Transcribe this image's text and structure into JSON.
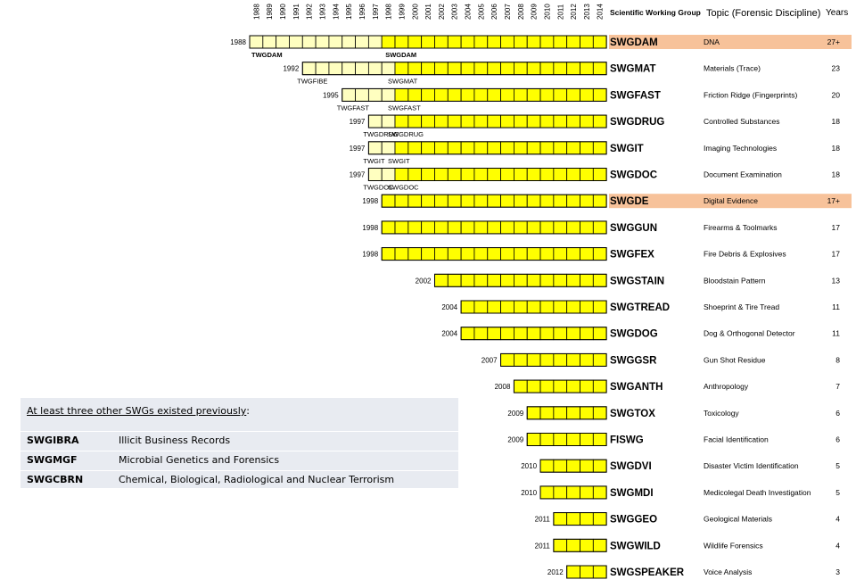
{
  "header": {
    "group_label": "Scientific Working Group",
    "topic_label": "Topic (Forensic Discipline)",
    "years_label": "Years"
  },
  "note": {
    "title": "At least three other SWGs existed previously",
    "title_suffix": ":",
    "items": [
      {
        "code": "SWGIBRA",
        "desc": "Illicit Business Records"
      },
      {
        "code": "SWGMGF",
        "desc": "Microbial Genetics and Forensics"
      },
      {
        "code": "SWGCBRN",
        "desc": "Chemical, Biological, Radiological and Nuclear Terrorism"
      }
    ]
  },
  "chart_data": {
    "type": "bar",
    "title": "",
    "x": [
      "1988",
      "1989",
      "1990",
      "1991",
      "1992",
      "1993",
      "1994",
      "1995",
      "1996",
      "1997",
      "1998",
      "1999",
      "2000",
      "2001",
      "2002",
      "2003",
      "2004",
      "2005",
      "2006",
      "2007",
      "2008",
      "2009",
      "2010",
      "2011",
      "2012",
      "2013",
      "2014"
    ],
    "colors": {
      "tw_phase": "#ffffc0",
      "sw_phase": "#ffff00",
      "highlight": "#f7c29a",
      "border": "#000000"
    },
    "rows": [
      {
        "start_label": "1988",
        "start": 1988,
        "tw_end": 1998,
        "tw_name": "TWGDAM",
        "sw_name": "SWGDAM",
        "group": "SWGDAM",
        "topic": "DNA",
        "years": "27+",
        "highlight": true
      },
      {
        "start_label": "1992",
        "start": 1992,
        "tw_end": 1999,
        "tw_name": "TWGFIBE",
        "sw_name": "SWGMAT",
        "group": "SWGMAT",
        "topic": "Materials (Trace)",
        "years": "23",
        "highlight": false
      },
      {
        "start_label": "1995",
        "start": 1995,
        "tw_end": 1999,
        "tw_name": "TWGFAST",
        "sw_name": "SWGFAST",
        "group": "SWGFAST",
        "topic": "Friction Ridge (Fingerprints)",
        "years": "20",
        "highlight": false
      },
      {
        "start_label": "1997",
        "start": 1997,
        "tw_end": 1999,
        "tw_name": "TWGDRUG",
        "sw_name": "SWGDRUG",
        "group": "SWGDRUG",
        "topic": "Controlled Substances",
        "years": "18",
        "highlight": false
      },
      {
        "start_label": "1997",
        "start": 1997,
        "tw_end": 1999,
        "tw_name": "TWGIT",
        "sw_name": "SWGIT",
        "group": "SWGIT",
        "topic": "Imaging Technologies",
        "years": "18",
        "highlight": false
      },
      {
        "start_label": "1997",
        "start": 1997,
        "tw_end": 1999,
        "tw_name": "TWGDOC",
        "sw_name": "SWGDOC",
        "group": "SWGDOC",
        "topic": "Document Examination",
        "years": "18",
        "highlight": false
      },
      {
        "start_label": "1998",
        "start": 1998,
        "tw_end": null,
        "tw_name": "",
        "sw_name": "",
        "group": "SWGDE",
        "topic": "Digital Evidence",
        "years": "17+",
        "highlight": true
      },
      {
        "start_label": "1998",
        "start": 1998,
        "tw_end": null,
        "tw_name": "",
        "sw_name": "",
        "group": "SWGGUN",
        "topic": "Firearms & Toolmarks",
        "years": "17",
        "highlight": false
      },
      {
        "start_label": "1998",
        "start": 1998,
        "tw_end": null,
        "tw_name": "",
        "sw_name": "",
        "group": "SWGFEX",
        "topic": "Fire Debris & Explosives",
        "years": "17",
        "highlight": false
      },
      {
        "start_label": "2002",
        "start": 2002,
        "tw_end": null,
        "tw_name": "",
        "sw_name": "",
        "group": "SWGSTAIN",
        "topic": "Bloodstain Pattern",
        "years": "13",
        "highlight": false
      },
      {
        "start_label": "2004",
        "start": 2004,
        "tw_end": null,
        "tw_name": "",
        "sw_name": "",
        "group": "SWGTREAD",
        "topic": "Shoeprint & Tire Tread",
        "years": "11",
        "highlight": false
      },
      {
        "start_label": "2004",
        "start": 2004,
        "tw_end": null,
        "tw_name": "",
        "sw_name": "",
        "group": "SWGDOG",
        "topic": "Dog & Orthogonal Detector",
        "years": "11",
        "highlight": false
      },
      {
        "start_label": "2007",
        "start": 2007,
        "tw_end": null,
        "tw_name": "",
        "sw_name": "",
        "group": "SWGGSR",
        "topic": "Gun Shot Residue",
        "years": "8",
        "highlight": false
      },
      {
        "start_label": "2008",
        "start": 2008,
        "tw_end": null,
        "tw_name": "",
        "sw_name": "",
        "group": "SWGANTH",
        "topic": "Anthropology",
        "years": "7",
        "highlight": false
      },
      {
        "start_label": "2009",
        "start": 2009,
        "tw_end": null,
        "tw_name": "",
        "sw_name": "",
        "group": "SWGTOX",
        "topic": "Toxicology",
        "years": "6",
        "highlight": false
      },
      {
        "start_label": "2009",
        "start": 2009,
        "tw_end": null,
        "tw_name": "",
        "sw_name": "",
        "group": "FISWG",
        "topic": "Facial Identification",
        "years": "6",
        "highlight": false
      },
      {
        "start_label": "2010",
        "start": 2010,
        "tw_end": null,
        "tw_name": "",
        "sw_name": "",
        "group": "SWGDVI",
        "topic": "Disaster Victim Identification",
        "years": "5",
        "highlight": false
      },
      {
        "start_label": "2010",
        "start": 2010,
        "tw_end": null,
        "tw_name": "",
        "sw_name": "",
        "group": "SWGMDI",
        "topic": "Medicolegal Death Investigation",
        "years": "5",
        "highlight": false
      },
      {
        "start_label": "2011",
        "start": 2011,
        "tw_end": null,
        "tw_name": "",
        "sw_name": "",
        "group": "SWGGEO",
        "topic": "Geological Materials",
        "years": "4",
        "highlight": false
      },
      {
        "start_label": "2011",
        "start": 2011,
        "tw_end": null,
        "tw_name": "",
        "sw_name": "",
        "group": "SWGWILD",
        "topic": "Wildlife Forensics",
        "years": "4",
        "highlight": false
      },
      {
        "start_label": "2012",
        "start": 2012,
        "tw_end": null,
        "tw_name": "",
        "sw_name": "",
        "group": "SWGSPEAKER",
        "topic": "Voice Analysis",
        "years": "3",
        "highlight": false
      }
    ]
  }
}
